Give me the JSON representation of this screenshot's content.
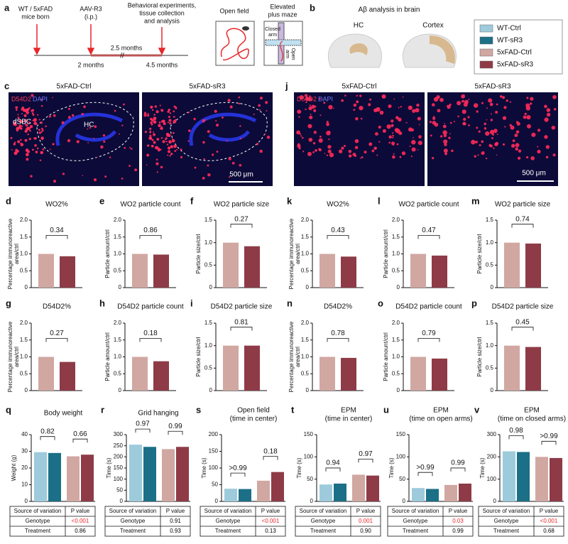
{
  "panel_a": {
    "letter": "a",
    "born": [
      "WT / 5xFAD",
      "mice born"
    ],
    "injection": [
      "AAV-R3",
      "(i.p.)"
    ],
    "end": [
      "Behavioral experiments,",
      "tissue collection",
      "and analysis"
    ],
    "duration": "2.5 months",
    "start_age": "2 months",
    "end_age": "4.5 months",
    "open_field": "Open field",
    "plus_maze": [
      "Elevated",
      "plus maze"
    ],
    "closed_arm": [
      "Closed",
      "arm"
    ],
    "open_arm": [
      "Open",
      "arm"
    ]
  },
  "panel_b": {
    "letter": "b",
    "title": "Aβ analysis in brain",
    "regions": [
      "HC",
      "Cortex"
    ]
  },
  "legend": {
    "names": [
      "WT-Ctrl",
      "WT-sR3",
      "5xFAD-Ctrl",
      "5xFAD-sR3"
    ],
    "colors": [
      "#9dcbdc",
      "#1b6f86",
      "#d1a7a2",
      "#8e3b47"
    ]
  },
  "panel_c": {
    "letter": "c",
    "images": [
      "5xFAD-Ctrl",
      "5xFAD-sR3"
    ],
    "stain": "D54D2",
    "counterstain": "DAPI",
    "dsbc": "dSBC",
    "hc": "HC",
    "scale": "500 μm"
  },
  "panel_j": {
    "letter": "j",
    "images": [
      "5xFAD-Ctrl",
      "5xFAD-sR3"
    ],
    "stain": "D54D2",
    "counterstain": "DAPI",
    "scale": "500 μm"
  },
  "chart_data": [
    {
      "type": "bar",
      "panel": "d",
      "title": [
        "WO2%"
      ],
      "ylabel": [
        "Percentage immunoreactive",
        "area/ctrl"
      ],
      "values": [
        1.0,
        0.93
      ],
      "colors": [
        "#d1a7a2",
        "#8e3b47"
      ],
      "ylim": [
        0,
        2
      ],
      "yticks": [
        0,
        0.5,
        {
          "value": 1,
          "label": "1.0"
        },
        1.5,
        {
          "value": 2,
          "label": "2.0"
        }
      ],
      "p_values": [
        "0.34"
      ]
    },
    {
      "type": "bar",
      "panel": "e",
      "title": [
        "WO2 particle count"
      ],
      "ylabel": [
        "Particle amount/ctrl"
      ],
      "values": [
        1.0,
        0.98
      ],
      "colors": [
        "#d1a7a2",
        "#8e3b47"
      ],
      "ylim": [
        0,
        2
      ],
      "yticks": [
        0,
        0.5,
        {
          "value": 1,
          "label": "1.0"
        },
        1.5,
        {
          "value": 2,
          "label": "2.0"
        }
      ],
      "p_values": [
        "0.86"
      ]
    },
    {
      "type": "bar",
      "panel": "f",
      "title": [
        "WO2 particle size"
      ],
      "ylabel": [
        "Particle size/ctrl"
      ],
      "values": [
        1.0,
        0.92
      ],
      "colors": [
        "#d1a7a2",
        "#8e3b47"
      ],
      "ylim": [
        0,
        1.5
      ],
      "yticks": [
        0,
        0.5,
        {
          "value": 1,
          "label": "1.0"
        },
        1.5
      ],
      "p_values": [
        "0.27"
      ]
    },
    {
      "type": "bar",
      "panel": "k",
      "title": [
        "WO2%"
      ],
      "ylabel": [
        "Percentage immunoreactive",
        "area/ctrl"
      ],
      "values": [
        1.0,
        0.92
      ],
      "colors": [
        "#d1a7a2",
        "#8e3b47"
      ],
      "ylim": [
        0,
        2
      ],
      "yticks": [
        0,
        0.5,
        {
          "value": 1,
          "label": "1.0"
        },
        1.5,
        {
          "value": 2,
          "label": "2.0"
        }
      ],
      "p_values": [
        "0.43"
      ]
    },
    {
      "type": "bar",
      "panel": "l",
      "title": [
        "WO2 particle count"
      ],
      "ylabel": [
        "Particle amount/ctrl"
      ],
      "values": [
        1.0,
        0.95
      ],
      "colors": [
        "#d1a7a2",
        "#8e3b47"
      ],
      "ylim": [
        0,
        2
      ],
      "yticks": [
        0,
        0.5,
        {
          "value": 1,
          "label": "1.0"
        },
        1.5,
        {
          "value": 2,
          "label": "2.0"
        }
      ],
      "p_values": [
        "0.47"
      ]
    },
    {
      "type": "bar",
      "panel": "m",
      "title": [
        "WO2 particle size"
      ],
      "ylabel": [
        "Particle size/ctrl"
      ],
      "values": [
        1.0,
        0.98
      ],
      "colors": [
        "#d1a7a2",
        "#8e3b47"
      ],
      "ylim": [
        0,
        1.5
      ],
      "yticks": [
        0,
        0.5,
        {
          "value": 1,
          "label": "1.0"
        },
        1.5
      ],
      "p_values": [
        "0.74"
      ]
    },
    {
      "type": "bar",
      "panel": "g",
      "title": [
        "D54D2%"
      ],
      "ylabel": [
        "Percentage immunoreactive",
        "area/ctrl"
      ],
      "values": [
        1.0,
        0.85
      ],
      "colors": [
        "#d1a7a2",
        "#8e3b47"
      ],
      "ylim": [
        0,
        2
      ],
      "yticks": [
        0,
        0.5,
        {
          "value": 1,
          "label": "1.0"
        },
        1.5,
        {
          "value": 2,
          "label": "2.0"
        }
      ],
      "p_values": [
        "0.27"
      ]
    },
    {
      "type": "bar",
      "panel": "h",
      "title": [
        "D54D2 particle count"
      ],
      "ylabel": [
        "Particle amount/ctrl"
      ],
      "values": [
        1.0,
        0.87
      ],
      "colors": [
        "#d1a7a2",
        "#8e3b47"
      ],
      "ylim": [
        0,
        2
      ],
      "yticks": [
        0,
        0.5,
        {
          "value": 1,
          "label": "1.0"
        },
        1.5,
        {
          "value": 2,
          "label": "2.0"
        }
      ],
      "p_values": [
        "0.18"
      ]
    },
    {
      "type": "bar",
      "panel": "i",
      "title": [
        "D54D2 particle size"
      ],
      "ylabel": [
        "Particle size/ctrl"
      ],
      "values": [
        1.0,
        1.0
      ],
      "colors": [
        "#d1a7a2",
        "#8e3b47"
      ],
      "ylim": [
        0,
        1.5
      ],
      "yticks": [
        0,
        0.5,
        {
          "value": 1,
          "label": "1.0"
        },
        1.5
      ],
      "p_values": [
        "0.81"
      ]
    },
    {
      "type": "bar",
      "panel": "n",
      "title": [
        "D54D2%"
      ],
      "ylabel": [
        "Percentage immunoreactive",
        "area/ctrl"
      ],
      "values": [
        1.0,
        0.97
      ],
      "colors": [
        "#d1a7a2",
        "#8e3b47"
      ],
      "ylim": [
        0,
        2
      ],
      "yticks": [
        0,
        0.5,
        {
          "value": 1,
          "label": "1.0"
        },
        1.5,
        {
          "value": 2,
          "label": "2.0"
        }
      ],
      "p_values": [
        "0.78"
      ]
    },
    {
      "type": "bar",
      "panel": "o",
      "title": [
        "D54D2 particle count"
      ],
      "ylabel": [
        "Particle amount/ctrl"
      ],
      "values": [
        1.0,
        0.95
      ],
      "colors": [
        "#d1a7a2",
        "#8e3b47"
      ],
      "ylim": [
        0,
        2
      ],
      "yticks": [
        0,
        0.5,
        {
          "value": 1,
          "label": "1.0"
        },
        1.5,
        {
          "value": 2,
          "label": "2.0"
        }
      ],
      "p_values": [
        "0.79"
      ]
    },
    {
      "type": "bar",
      "panel": "p",
      "title": [
        "D54D2 particle size"
      ],
      "ylabel": [
        "Particle size/ctrl"
      ],
      "values": [
        1.0,
        0.97
      ],
      "colors": [
        "#d1a7a2",
        "#8e3b47"
      ],
      "ylim": [
        0,
        1.5
      ],
      "yticks": [
        0,
        0.5,
        {
          "value": 1,
          "label": "1.0"
        },
        1.5
      ],
      "p_values": [
        "0.45"
      ]
    },
    {
      "type": "bar",
      "panel": "q",
      "title": [
        "Body weight"
      ],
      "ylabel": [
        "Weight (g)"
      ],
      "values": [
        29.5,
        29,
        27,
        28
      ],
      "colors": [
        "#9dcbdc",
        "#1b6f86",
        "#d1a7a2",
        "#8e3b47"
      ],
      "ylim": [
        0,
        40
      ],
      "yticks": [
        0,
        10,
        20,
        30,
        40
      ],
      "p_values": [
        "0.82",
        "0.66"
      ],
      "table": {
        "header": [
          "Source of variation",
          "P value"
        ],
        "rows": [
          [
            "Genotype",
            "<0.001"
          ],
          [
            "Treatment",
            "0.86"
          ]
        ],
        "value_colors": [
          "#e8262a",
          "#000000"
        ]
      }
    },
    {
      "type": "bar",
      "panel": "r",
      "title": [
        "Grid hanging"
      ],
      "ylabel": [
        "Time (s)"
      ],
      "values": [
        255,
        245,
        235,
        245
      ],
      "colors": [
        "#9dcbdc",
        "#1b6f86",
        "#d1a7a2",
        "#8e3b47"
      ],
      "ylim": [
        0,
        300
      ],
      "yticks": [
        0,
        50,
        100,
        150,
        200,
        250,
        300
      ],
      "p_values": [
        "0.97",
        "0.99"
      ],
      "table": {
        "header": [
          "Source of variation",
          "P value"
        ],
        "rows": [
          [
            "Genotype",
            "0.91"
          ],
          [
            "Treatment",
            "0.93"
          ]
        ],
        "value_colors": [
          "#000000",
          "#000000"
        ]
      }
    },
    {
      "type": "bar",
      "panel": "s",
      "title": [
        "Open field",
        "(time in center)"
      ],
      "ylabel": [
        "Time (s)"
      ],
      "values": [
        38,
        37,
        62,
        88
      ],
      "colors": [
        "#9dcbdc",
        "#1b6f86",
        "#d1a7a2",
        "#8e3b47"
      ],
      "ylim": [
        0,
        200
      ],
      "yticks": [
        0,
        50,
        100,
        150,
        200
      ],
      "p_values": [
        ">0.99",
        "0.18"
      ],
      "table": {
        "header": [
          "Source of variation",
          "P value"
        ],
        "rows": [
          [
            "Genotype",
            "<0.001"
          ],
          [
            "Treatment",
            "0.13"
          ]
        ],
        "value_colors": [
          "#e8262a",
          "#000000"
        ]
      }
    },
    {
      "type": "bar",
      "panel": "t",
      "title": [
        "EPM",
        "(time in center)"
      ],
      "ylabel": [
        "Time (s)"
      ],
      "values": [
        38,
        40,
        60,
        58
      ],
      "colors": [
        "#9dcbdc",
        "#1b6f86",
        "#d1a7a2",
        "#8e3b47"
      ],
      "ylim": [
        0,
        150
      ],
      "yticks": [
        0,
        50,
        100,
        150
      ],
      "p_values": [
        "0.94",
        "0.97"
      ],
      "table": {
        "header": [
          "Source of variation",
          "P value"
        ],
        "rows": [
          [
            "Genotype",
            "0.001"
          ],
          [
            "Treatment",
            "0.90"
          ]
        ],
        "value_colors": [
          "#e8262a",
          "#000000"
        ]
      }
    },
    {
      "type": "bar",
      "panel": "u",
      "title": [
        "EPM",
        "(time on open arms)"
      ],
      "ylabel": [
        "Time (s)"
      ],
      "values": [
        30,
        28,
        37,
        40
      ],
      "colors": [
        "#9dcbdc",
        "#1b6f86",
        "#d1a7a2",
        "#8e3b47"
      ],
      "ylim": [
        0,
        150
      ],
      "yticks": [
        0,
        50,
        100,
        150
      ],
      "p_values": [
        ">0.99",
        "0.99"
      ],
      "table": {
        "header": [
          "Source of variation",
          "P value"
        ],
        "rows": [
          [
            "Genotype",
            "0.03"
          ],
          [
            "Treatment",
            "0.99"
          ]
        ],
        "value_colors": [
          "#e8262a",
          "#000000"
        ]
      }
    },
    {
      "type": "bar",
      "panel": "v",
      "title": [
        "EPM",
        "(time on closed arms)"
      ],
      "ylabel": [
        "Time (s)"
      ],
      "values": [
        225,
        222,
        200,
        195
      ],
      "colors": [
        "#9dcbdc",
        "#1b6f86",
        "#d1a7a2",
        "#8e3b47"
      ],
      "ylim": [
        0,
        300
      ],
      "yticks": [
        0,
        100,
        200,
        300
      ],
      "p_values": [
        "0.98",
        ">0.99"
      ],
      "table": {
        "header": [
          "Source of variation",
          "P value"
        ],
        "rows": [
          [
            "Genotype",
            "<0.001"
          ],
          [
            "Treatment",
            "0.68"
          ]
        ],
        "value_colors": [
          "#e8262a",
          "#000000"
        ]
      }
    }
  ]
}
